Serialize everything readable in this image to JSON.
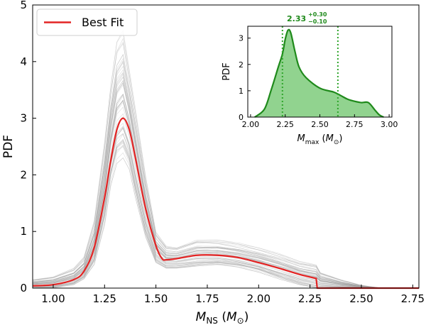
{
  "colors": {
    "best_fit": "#e32424",
    "samples": "#9e9e9e",
    "inset_fill": "#6cc46a",
    "inset_line": "#1f8a1b",
    "inset_vline": "#2ea52a",
    "annotation": "#1f8a1b"
  },
  "chart_data": [
    {
      "type": "line",
      "title": "",
      "xlabel": "M_NS (M_⊙)",
      "ylabel": "PDF",
      "xlim": [
        0.9,
        2.78
      ],
      "ylim": [
        0,
        5
      ],
      "xticks": [
        1.0,
        1.25,
        1.5,
        1.75,
        2.0,
        2.25,
        2.5,
        2.75
      ],
      "xtick_labels": [
        "1.00",
        "1.25",
        "1.50",
        "1.75",
        "2.00",
        "2.25",
        "2.50",
        "2.75"
      ],
      "yticks": [
        0,
        1,
        2,
        3,
        4,
        5
      ],
      "ytick_labels": [
        "0",
        "1",
        "2",
        "3",
        "4",
        "5"
      ],
      "legend": {
        "position": "top-left",
        "entries": [
          "Best Fit"
        ]
      },
      "series": [
        {
          "name": "Best Fit",
          "x": [
            0.9,
            1.0,
            1.1,
            1.15,
            1.2,
            1.25,
            1.28,
            1.31,
            1.34,
            1.37,
            1.4,
            1.45,
            1.5,
            1.53,
            1.55,
            1.6,
            1.7,
            1.8,
            1.9,
            2.0,
            2.1,
            2.2,
            2.28,
            2.285,
            2.4,
            2.6,
            2.78
          ],
          "y": [
            0.04,
            0.06,
            0.15,
            0.3,
            0.72,
            1.6,
            2.25,
            2.8,
            3.0,
            2.8,
            2.3,
            1.4,
            0.75,
            0.52,
            0.5,
            0.52,
            0.58,
            0.58,
            0.54,
            0.45,
            0.35,
            0.24,
            0.17,
            0.0,
            0.0,
            0.0,
            0.0
          ]
        }
      ],
      "samples_band": {
        "x": [
          0.9,
          1.0,
          1.1,
          1.15,
          1.2,
          1.25,
          1.28,
          1.31,
          1.34,
          1.37,
          1.4,
          1.45,
          1.5,
          1.55,
          1.6,
          1.7,
          1.8,
          1.9,
          2.0,
          2.1,
          2.2,
          2.28,
          2.3,
          2.4,
          2.5,
          2.6,
          2.78
        ],
        "lower": [
          0.0,
          0.0,
          0.05,
          0.15,
          0.4,
          1.1,
          1.8,
          2.2,
          2.3,
          2.1,
          1.6,
          0.9,
          0.45,
          0.35,
          0.35,
          0.38,
          0.4,
          0.36,
          0.28,
          0.16,
          0.06,
          0.0,
          0.0,
          0.0,
          0.0,
          0.0,
          0.0
        ],
        "upper": [
          0.15,
          0.2,
          0.35,
          0.55,
          1.2,
          2.6,
          3.6,
          4.4,
          4.6,
          3.9,
          3.2,
          2.0,
          1.0,
          0.75,
          0.72,
          0.85,
          0.85,
          0.8,
          0.72,
          0.62,
          0.48,
          0.42,
          0.28,
          0.15,
          0.05,
          0.0,
          0.0
        ],
        "sample_count_drawn": 60
      },
      "grid": false
    },
    {
      "type": "area",
      "title": "",
      "xlabel": "M_max (M_⊙)",
      "ylabel": "PDF",
      "xlim": [
        1.98,
        3.02
      ],
      "ylim": [
        0,
        3.45
      ],
      "xticks": [
        2.0,
        2.25,
        2.5,
        2.75,
        3.0
      ],
      "xtick_labels": [
        "2.00",
        "2.25",
        "2.50",
        "2.75",
        "3.00"
      ],
      "yticks": [
        0,
        1,
        2,
        3
      ],
      "ytick_labels": [
        "0",
        "1",
        "2",
        "3"
      ],
      "series": [
        {
          "x": [
            2.03,
            2.1,
            2.15,
            2.2,
            2.23,
            2.25,
            2.27,
            2.29,
            2.32,
            2.35,
            2.4,
            2.5,
            2.6,
            2.65,
            2.7,
            2.75,
            2.8,
            2.85,
            2.9,
            2.93,
            2.96
          ],
          "y": [
            0.0,
            0.3,
            1.05,
            1.9,
            2.4,
            2.95,
            3.3,
            3.2,
            2.5,
            1.9,
            1.5,
            1.1,
            0.95,
            0.82,
            0.68,
            0.6,
            0.55,
            0.55,
            0.25,
            0.08,
            0.0
          ]
        }
      ],
      "vlines": [
        2.23,
        2.63
      ],
      "annotation": {
        "value": "2.33",
        "upper": "+0.30",
        "lower": "−0.10"
      },
      "grid": false
    }
  ]
}
